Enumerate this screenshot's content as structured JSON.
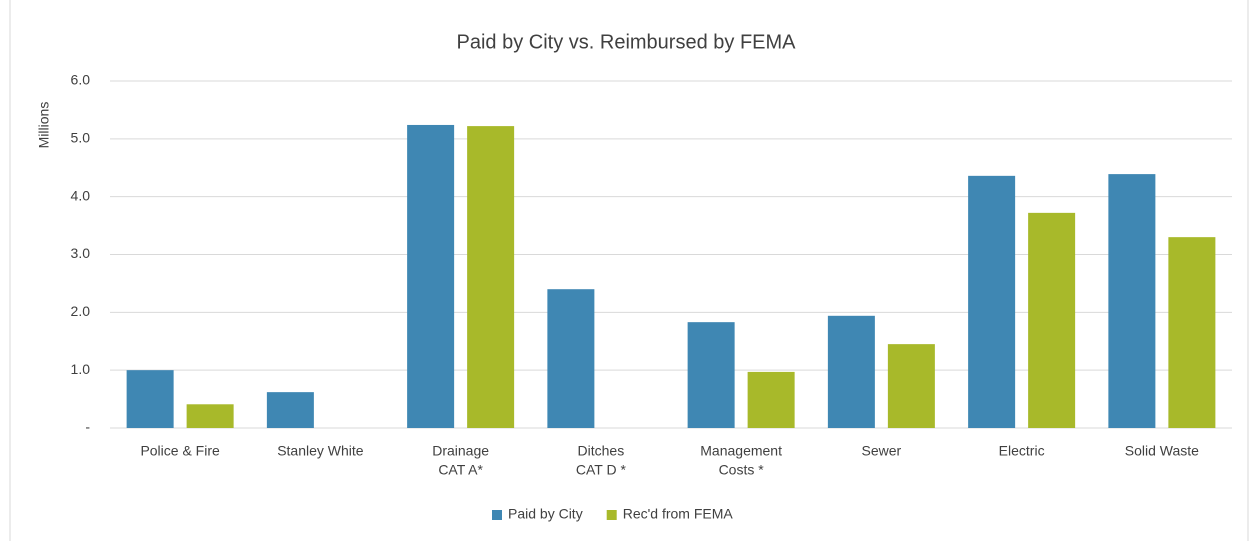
{
  "chart_data": {
    "type": "bar",
    "title": "Paid by City vs. Reimbursed by FEMA",
    "y_label": "Millions",
    "categories": [
      [
        "Police & Fire"
      ],
      [
        "Stanley White"
      ],
      [
        "Drainage",
        "CAT A*"
      ],
      [
        "Ditches",
        "CAT D *"
      ],
      [
        "Management",
        "Costs *"
      ],
      [
        "Sewer"
      ],
      [
        "Electric"
      ],
      [
        "Solid Waste"
      ]
    ],
    "series": [
      {
        "name": "Paid by City",
        "color": "#3f87b3",
        "values": [
          1.0,
          0.62,
          5.24,
          2.4,
          1.83,
          1.94,
          4.36,
          4.39
        ]
      },
      {
        "name": "Rec'd from FEMA",
        "color": "#a8b92a",
        "values": [
          0.41,
          0,
          5.22,
          0,
          0.97,
          1.45,
          3.72,
          3.3
        ]
      }
    ],
    "ylim": [
      0,
      6
    ],
    "yticks": [
      {
        "value": 0,
        "label": "-"
      },
      {
        "value": 1,
        "label": "1.0"
      },
      {
        "value": 2,
        "label": "2.0"
      },
      {
        "value": 3,
        "label": "3.0"
      },
      {
        "value": 4,
        "label": "4.0"
      },
      {
        "value": 5,
        "label": "5.0"
      },
      {
        "value": 6,
        "label": "6.0"
      }
    ],
    "grid": true,
    "legend": "bottom"
  }
}
